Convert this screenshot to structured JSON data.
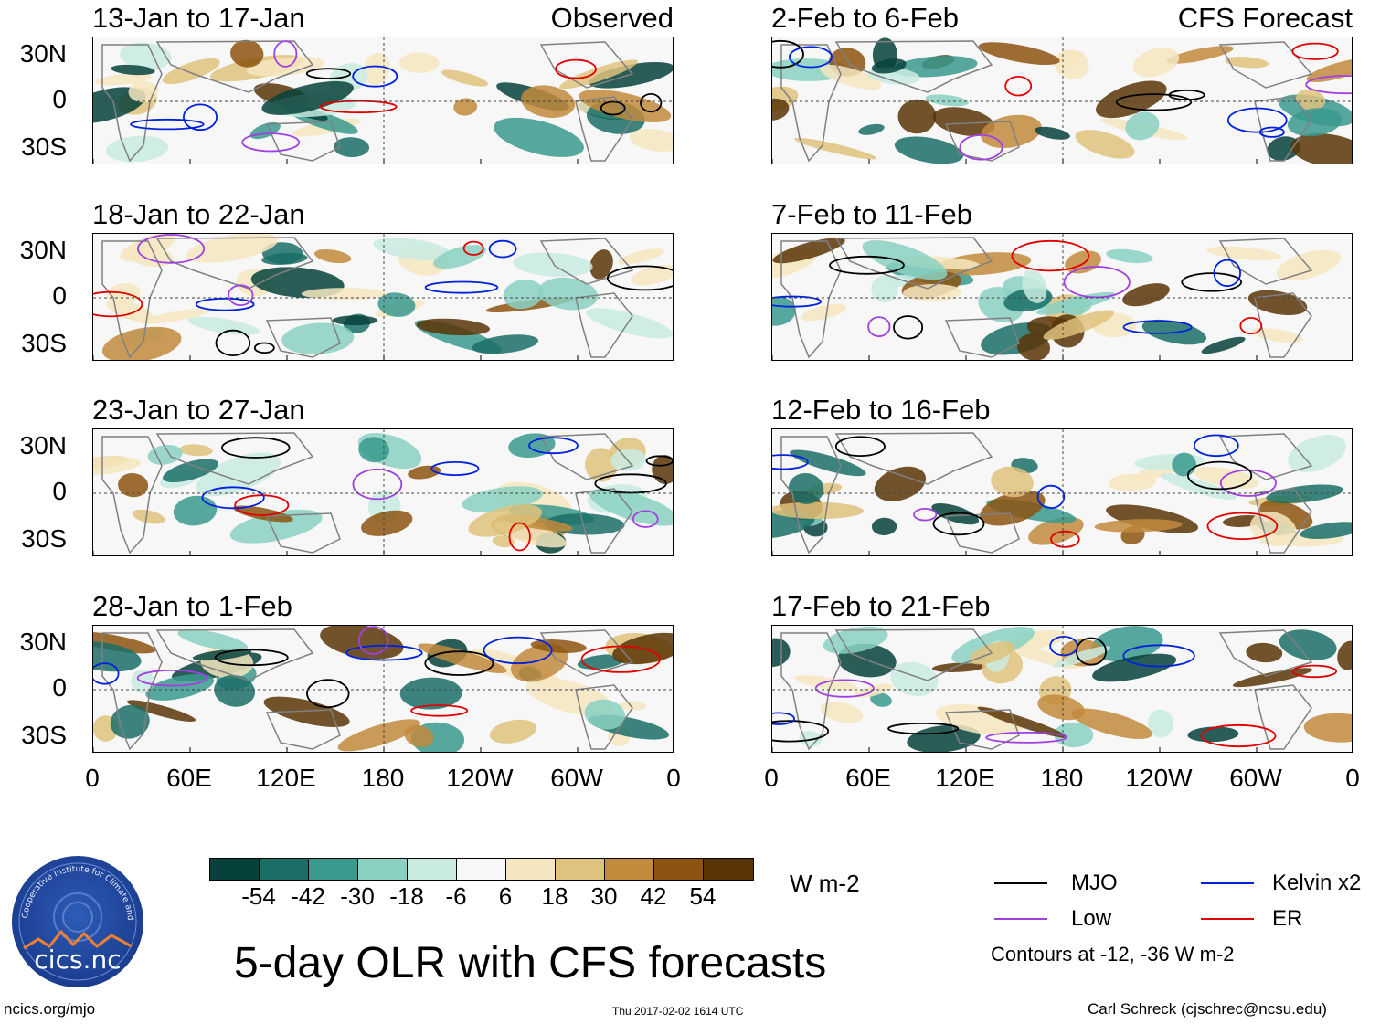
{
  "columns": {
    "left": {
      "label": "Observed",
      "panels": [
        "13-Jan to 17-Jan",
        "18-Jan to 22-Jan",
        "23-Jan to 27-Jan",
        "28-Jan to 1-Feb"
      ]
    },
    "right": {
      "label": "CFS Forecast",
      "panels": [
        "2-Feb to 6-Feb",
        "7-Feb to 11-Feb",
        "12-Feb to 16-Feb",
        "17-Feb to 21-Feb"
      ]
    }
  },
  "axes": {
    "lat_labels": [
      "30N",
      "0",
      "30S"
    ],
    "lon_labels": [
      "0",
      "60E",
      "120E",
      "180",
      "120W",
      "60W",
      "0"
    ]
  },
  "colorbar": {
    "colors": [
      "#06423b",
      "#1a6e66",
      "#3a9a8e",
      "#8ad1c2",
      "#c9ebe2",
      "#f7f7f7",
      "#f6e6c0",
      "#dfc27d",
      "#c28a3d",
      "#8c5410",
      "#5b3506"
    ],
    "labels": [
      "-54",
      "-42",
      "-30",
      "-18",
      "-6",
      "6",
      "18",
      "30",
      "42",
      "54"
    ],
    "units": "W m-2"
  },
  "legend": {
    "items": [
      {
        "name": "MJO",
        "color": "#000000"
      },
      {
        "name": "Kelvin x2",
        "color": "#0022dd"
      },
      {
        "name": "Low",
        "color": "#a040e0"
      },
      {
        "name": "ER",
        "color": "#e00000"
      }
    ],
    "note": "Contours at -12, -36 W m-2"
  },
  "logo": {
    "text": "cics.nc",
    "ring_text": "Cooperative Institute for Climate and Satellites"
  },
  "title": "5-day OLR with CFS forecasts",
  "footer": {
    "url": "ncics.org/mjo",
    "timestamp": "Thu 2017-02-02 1614 UTC",
    "author": "Carl Schreck (cjschrec@ncsu.edu)"
  }
}
